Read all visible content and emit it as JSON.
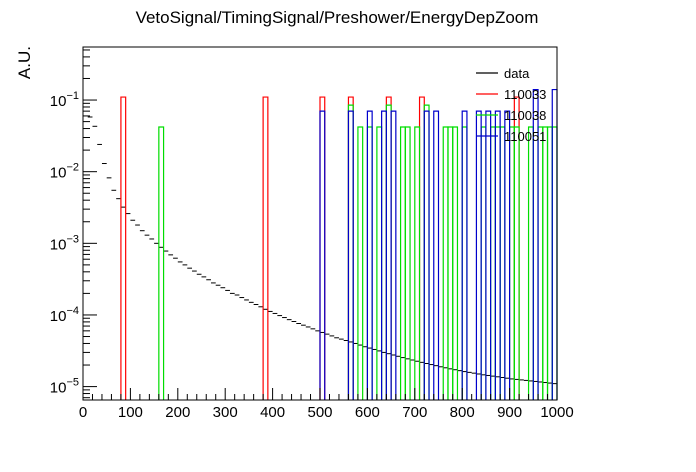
{
  "chart_data": {
    "type": "histogram",
    "title": "VetoSignal/TimingSignal/Preshower/EnergyDepZoom",
    "ylabel": "A.U.",
    "xlabel": "",
    "xlim": [
      0,
      1000
    ],
    "ylim": [
      6.5e-06,
      0.55
    ],
    "yscale": "log",
    "grid": false,
    "legend_position": "top-right",
    "x_ticks": [
      0,
      100,
      200,
      300,
      400,
      500,
      600,
      700,
      800,
      900,
      1000
    ],
    "x_tick_labels": [
      "0",
      "100",
      "200",
      "300",
      "400",
      "500",
      "600",
      "700",
      "800",
      "900",
      "1000"
    ],
    "y_ticks": [
      1e-05,
      0.0001,
      0.001,
      0.01,
      0.1
    ],
    "bin_width": 10,
    "series": [
      {
        "name": "data",
        "color": "#000000",
        "style": "markers",
        "points": [
          [
            15,
            0.058
          ],
          [
            25,
            0.043
          ],
          [
            35,
            0.024
          ],
          [
            45,
            0.013
          ],
          [
            55,
            0.0082
          ],
          [
            65,
            0.0055
          ],
          [
            75,
            0.0042
          ],
          [
            85,
            0.0032
          ],
          [
            95,
            0.0026
          ],
          [
            105,
            0.0021
          ],
          [
            115,
            0.0018
          ],
          [
            125,
            0.0015
          ],
          [
            135,
            0.0013
          ],
          [
            145,
            0.00115
          ],
          [
            155,
            0.001
          ],
          [
            165,
            0.00088
          ],
          [
            175,
            0.00078
          ],
          [
            185,
            0.00069
          ],
          [
            195,
            0.00062
          ],
          [
            205,
            0.00055
          ],
          [
            215,
            0.0005
          ],
          [
            225,
            0.00045
          ],
          [
            235,
            0.00041
          ],
          [
            245,
            0.00037
          ],
          [
            255,
            0.00034
          ],
          [
            265,
            0.00031
          ],
          [
            275,
            0.00028
          ],
          [
            285,
            0.00026
          ],
          [
            295,
            0.00024
          ],
          [
            305,
            0.00022
          ],
          [
            315,
            0.0002
          ],
          [
            325,
            0.00019
          ],
          [
            335,
            0.000175
          ],
          [
            345,
            0.000162
          ],
          [
            355,
            0.00015
          ],
          [
            365,
            0.00014
          ],
          [
            375,
            0.00013
          ],
          [
            385,
            0.00012
          ],
          [
            395,
            0.000112
          ],
          [
            405,
            0.000105
          ],
          [
            415,
            9.8e-05
          ],
          [
            425,
            9.2e-05
          ],
          [
            435,
            8.6e-05
          ],
          [
            445,
            8.1e-05
          ],
          [
            455,
            7.6e-05
          ],
          [
            465,
            7.2e-05
          ],
          [
            475,
            6.8e-05
          ],
          [
            485,
            6.4e-05
          ],
          [
            495,
            6e-05
          ],
          [
            505,
            5.7e-05
          ],
          [
            515,
            5.4e-05
          ],
          [
            525,
            5.1e-05
          ],
          [
            535,
            4.8e-05
          ],
          [
            545,
            4.6e-05
          ],
          [
            555,
            4.4e-05
          ],
          [
            565,
            4.2e-05
          ],
          [
            575,
            4e-05
          ],
          [
            585,
            3.8e-05
          ],
          [
            595,
            3.6e-05
          ],
          [
            605,
            3.45e-05
          ],
          [
            615,
            3.3e-05
          ],
          [
            625,
            3.15e-05
          ],
          [
            635,
            3e-05
          ],
          [
            645,
            2.88e-05
          ],
          [
            655,
            2.76e-05
          ],
          [
            665,
            2.65e-05
          ],
          [
            675,
            2.54e-05
          ],
          [
            685,
            2.44e-05
          ],
          [
            695,
            2.35e-05
          ],
          [
            705,
            2.26e-05
          ],
          [
            715,
            2.18e-05
          ],
          [
            725,
            2.1e-05
          ],
          [
            735,
            2.03e-05
          ],
          [
            745,
            1.96e-05
          ],
          [
            755,
            1.89e-05
          ],
          [
            765,
            1.83e-05
          ],
          [
            775,
            1.77e-05
          ],
          [
            785,
            1.72e-05
          ],
          [
            795,
            1.67e-05
          ],
          [
            805,
            1.62e-05
          ],
          [
            815,
            1.58e-05
          ],
          [
            825,
            1.54e-05
          ],
          [
            835,
            1.5e-05
          ],
          [
            845,
            1.46e-05
          ],
          [
            855,
            1.43e-05
          ],
          [
            865,
            1.4e-05
          ],
          [
            875,
            1.37e-05
          ],
          [
            885,
            1.34e-05
          ],
          [
            895,
            1.31e-05
          ],
          [
            905,
            1.28e-05
          ],
          [
            915,
            1.26e-05
          ],
          [
            925,
            1.24e-05
          ],
          [
            935,
            1.22e-05
          ],
          [
            945,
            1.2e-05
          ],
          [
            955,
            1.18e-05
          ],
          [
            965,
            1.16e-05
          ],
          [
            975,
            1.14e-05
          ],
          [
            985,
            1.12e-05
          ],
          [
            995,
            1.1e-05
          ]
        ]
      },
      {
        "name": "110033",
        "color": "#ff0000",
        "style": "hist",
        "bins": [
          [
            80,
            0.11
          ],
          [
            380,
            0.11
          ],
          [
            500,
            0.11
          ],
          [
            560,
            0.11
          ],
          [
            640,
            0.11
          ],
          [
            710,
            0.11
          ],
          [
            910,
            0.11
          ]
        ]
      },
      {
        "name": "110038",
        "color": "#00dd00",
        "style": "hist",
        "bins": [
          [
            160,
            0.042
          ],
          [
            560,
            0.085
          ],
          [
            580,
            0.042
          ],
          [
            600,
            0.042
          ],
          [
            620,
            0.042
          ],
          [
            640,
            0.085
          ],
          [
            670,
            0.042
          ],
          [
            680,
            0.042
          ],
          [
            700,
            0.042
          ],
          [
            720,
            0.085
          ],
          [
            760,
            0.042
          ],
          [
            770,
            0.042
          ],
          [
            780,
            0.042
          ],
          [
            800,
            0.042
          ],
          [
            840,
            0.042
          ],
          [
            860,
            0.042
          ],
          [
            870,
            0.042
          ],
          [
            880,
            0.042
          ],
          [
            900,
            0.042
          ],
          [
            910,
            0.042
          ],
          [
            940,
            0.042
          ],
          [
            960,
            0.042
          ],
          [
            970,
            0.042
          ],
          [
            980,
            0.042
          ],
          [
            990,
            0.042
          ]
        ]
      },
      {
        "name": "110051",
        "color": "#0000cc",
        "style": "hist",
        "bins": [
          [
            500,
            0.07
          ],
          [
            560,
            0.07
          ],
          [
            600,
            0.07
          ],
          [
            630,
            0.07
          ],
          [
            650,
            0.07
          ],
          [
            720,
            0.07
          ],
          [
            740,
            0.07
          ],
          [
            800,
            0.07
          ],
          [
            830,
            0.07
          ],
          [
            850,
            0.07
          ],
          [
            870,
            0.07
          ],
          [
            890,
            0.07
          ],
          [
            950,
            0.14
          ],
          [
            990,
            0.14
          ]
        ]
      }
    ]
  }
}
